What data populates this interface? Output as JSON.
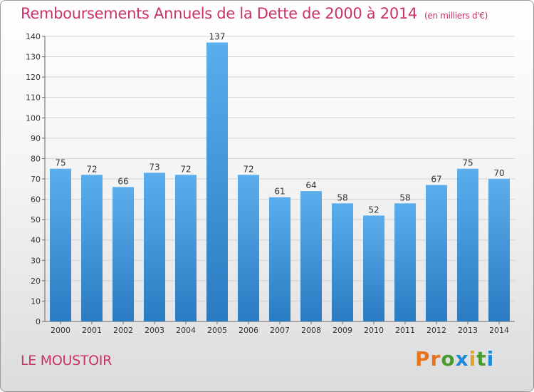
{
  "header": {
    "title": "Remboursements Annuels de la Dette de 2000 à 2014",
    "unit": "(en milliers d'€)"
  },
  "footer": {
    "city": "LE MOUSTOIR",
    "brand": "Proxiti"
  },
  "colors": {
    "title": "#c8336b",
    "bar_top": "#5aaeed",
    "bar_bottom": "#2a7bc2",
    "brand_letters": [
      "#e8731f",
      "#e8731f",
      "#4a9a2f",
      "#1c8ad6",
      "#e0a323",
      "#4a9a2f",
      "#1c8ad6"
    ]
  },
  "chart_data": {
    "type": "bar",
    "categories": [
      "2000",
      "2001",
      "2002",
      "2003",
      "2004",
      "2005",
      "2006",
      "2007",
      "2008",
      "2009",
      "2010",
      "2011",
      "2012",
      "2013",
      "2014"
    ],
    "values": [
      75,
      72,
      66,
      73,
      72,
      137,
      72,
      61,
      64,
      58,
      52,
      58,
      67,
      75,
      70
    ],
    "yticks": [
      0,
      10,
      20,
      30,
      40,
      50,
      60,
      70,
      80,
      90,
      100,
      110,
      120,
      130,
      140
    ],
    "ylim": [
      0,
      140
    ],
    "grid": true,
    "data_labels": true
  }
}
